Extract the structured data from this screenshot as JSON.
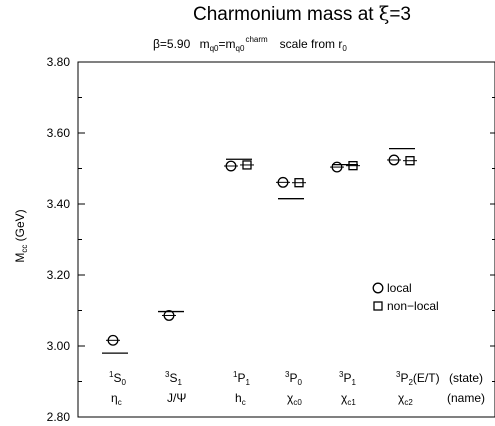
{
  "chart_data": {
    "type": "scatter",
    "title": {
      "main": "Charmonium mass  at ",
      "xi": "ξ",
      "main_tail": "=3"
    },
    "subtitle": {
      "beta": "β=5.90",
      "m1": "m",
      "m1_sub": "q0",
      "eq": "=m",
      "m2_sub": "q0",
      "m2_sup": "charm",
      "scale": "scale from r",
      "scale_sub": "0"
    },
    "ylabel": {
      "base": "M",
      "sub": "cc",
      "unit": " (GeV)"
    },
    "ylim": [
      2.8,
      3.8
    ],
    "yticks": [
      "2.80",
      "3.00",
      "3.20",
      "3.40",
      "3.60",
      "3.80"
    ],
    "yticks_values": [
      2.8,
      3.0,
      3.2,
      3.4,
      3.6,
      3.8
    ],
    "legend": {
      "position": "right",
      "items": [
        {
          "symbol": "circle",
          "label": "local"
        },
        {
          "symbol": "square",
          "label": "non−local"
        }
      ]
    },
    "states": [
      {
        "sup": "1",
        "base": "S",
        "sub": "0",
        "suffix": "",
        "name": "η",
        "name_sub": "c",
        "local": 3.016,
        "nonlocal": null,
        "experiment": 2.98
      },
      {
        "sup": "3",
        "base": "S",
        "sub": "1",
        "suffix": "",
        "name": "J/Ψ",
        "name_sub": "",
        "local": 3.086,
        "nonlocal": null,
        "experiment": 3.097
      },
      {
        "sup": "1",
        "base": "P",
        "sub": "1",
        "suffix": "",
        "name": "h",
        "name_sub": "c",
        "local": 3.507,
        "nonlocal": 3.51,
        "experiment": 3.526
      },
      {
        "sup": "3",
        "base": "P",
        "sub": "0",
        "suffix": "",
        "name": "χ",
        "name_sub": "c0",
        "local": 3.461,
        "nonlocal": 3.46,
        "experiment": 3.415
      },
      {
        "sup": "3",
        "base": "P",
        "sub": "1",
        "suffix": "",
        "name": "χ",
        "name_sub": "c1",
        "local": 3.504,
        "nonlocal": 3.508,
        "experiment": 3.511
      },
      {
        "sup": "3",
        "base": "P",
        "sub": "2",
        "suffix": "(E/T)",
        "name": "χ",
        "name_sub": "c2",
        "local": 3.524,
        "nonlocal": 3.522,
        "experiment": 3.556
      }
    ],
    "row_labels": {
      "state": "(state)",
      "name": "(name)"
    }
  }
}
